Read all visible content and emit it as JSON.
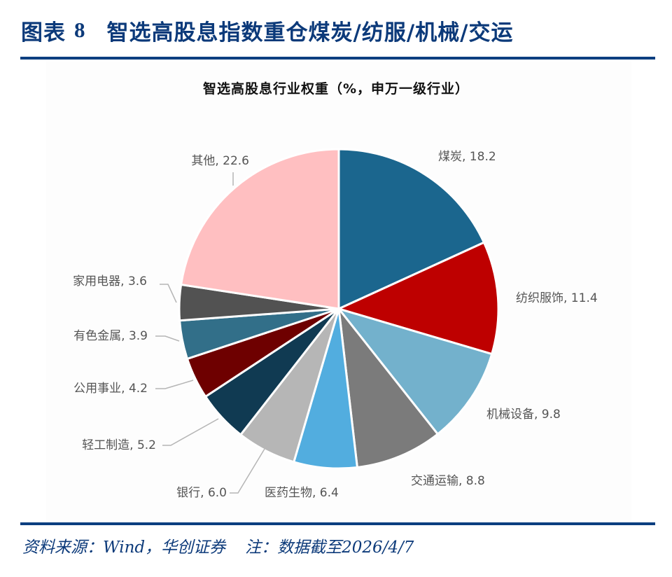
{
  "figure": {
    "label": "图表",
    "number": "8",
    "title": "智选高股息指数重仓煤炭/纺服/机械/交运"
  },
  "colors": {
    "rule": "#0c3f80",
    "title": "#0c3a7a",
    "separator": "#ffffff",
    "leader_line": "#b5b5b5",
    "label_text": "#555555"
  },
  "chart_data": {
    "type": "pie",
    "title": "智选高股息行业权重（%，申万一级行业）",
    "unit": "%",
    "start_angle_deg": 0,
    "direction": "clockwise",
    "legend": "none (data labels on slices)",
    "categories": [
      "煤炭",
      "纺织服饰",
      "机械设备",
      "交通运输",
      "医药生物",
      "银行",
      "轻工制造",
      "公用事业",
      "有色金属",
      "家用电器",
      "其他"
    ],
    "values": [
      18.2,
      11.4,
      9.8,
      8.8,
      6.4,
      6.0,
      5.2,
      4.2,
      3.9,
      3.6,
      22.6
    ],
    "slice_colors": [
      "#1b668e",
      "#be0000",
      "#73b1cc",
      "#7b7b7b",
      "#52addf",
      "#b6b6b6",
      "#103a52",
      "#6e0000",
      "#326f89",
      "#525252",
      "#ffbfc1"
    ],
    "labels": [
      "煤炭, 18.2",
      "纺织服饰, 11.4",
      "机械设备, 9.8",
      "交通运输, 8.8",
      "医药生物, 6.4",
      "银行, 6.0",
      "轻工制造, 5.2",
      "公用事业, 4.2",
      "有色金属, 3.9",
      "家用电器, 3.6",
      "其他, 22.6"
    ]
  },
  "footer": {
    "source": "资料来源：Wind，华创证券",
    "note": "注：数据截至2026/4/7"
  }
}
